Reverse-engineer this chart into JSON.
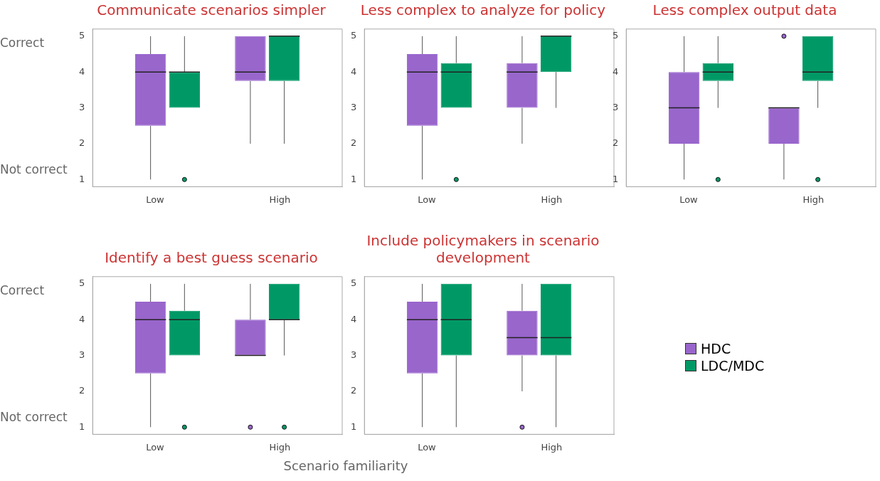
{
  "chart_data": [
    {
      "type": "box",
      "title": "Communicate scenarios simpler",
      "categories": [
        "Low",
        "High"
      ],
      "ylim": [
        0.8,
        5.2
      ],
      "yticks": [
        1,
        2,
        3,
        4,
        5
      ],
      "grid": false,
      "legend": false,
      "annotations": [
        "Correct",
        "Not correct"
      ],
      "series": [
        {
          "color": "#9966cc",
          "boxes": [
            {
              "low": 1,
              "q1": 2.5,
              "median": 4,
              "q3": 4.5,
              "high": 5
            },
            {
              "low": 2,
              "q1": 3.75,
              "median": 4,
              "q3": 5,
              "high": 5
            }
          ]
        },
        {
          "color": "#009966",
          "boxes": [
            {
              "low": 3,
              "q1": 3,
              "median": 4,
              "q3": 4,
              "high": 5,
              "outliers": [
                1
              ]
            },
            {
              "low": 2,
              "q1": 3.75,
              "median": 5,
              "q3": 5,
              "high": 5
            }
          ]
        }
      ]
    },
    {
      "type": "box",
      "title": "Less complex to analyze for policy",
      "categories": [
        "Low",
        "High"
      ],
      "ylim": [
        0.8,
        5.2
      ],
      "yticks": [
        1,
        2,
        3,
        4,
        5
      ],
      "grid": false,
      "legend": false,
      "series": [
        {
          "color": "#9966cc",
          "boxes": [
            {
              "low": 1,
              "q1": 2.5,
              "median": 4,
              "q3": 4.5,
              "high": 5
            },
            {
              "low": 2,
              "q1": 3,
              "median": 4,
              "q3": 4.25,
              "high": 5
            }
          ]
        },
        {
          "color": "#009966",
          "boxes": [
            {
              "low": 3,
              "q1": 3,
              "median": 4,
              "q3": 4.25,
              "high": 5,
              "outliers": [
                1
              ]
            },
            {
              "low": 3,
              "q1": 4,
              "median": 5,
              "q3": 5,
              "high": 5
            }
          ]
        }
      ]
    },
    {
      "type": "box",
      "title": "Less complex output data",
      "categories": [
        "Low",
        "High"
      ],
      "ylim": [
        0.8,
        5.2
      ],
      "yticks": [
        1,
        2,
        3,
        4,
        5
      ],
      "grid": false,
      "legend": false,
      "series": [
        {
          "color": "#9966cc",
          "boxes": [
            {
              "low": 1,
              "q1": 2,
              "median": 3,
              "q3": 4,
              "high": 5
            },
            {
              "low": 1,
              "q1": 2,
              "median": 3,
              "q3": 3,
              "high": 3,
              "outliers": [
                5
              ]
            }
          ]
        },
        {
          "color": "#009966",
          "boxes": [
            {
              "low": 3,
              "q1": 3.75,
              "median": 4,
              "q3": 4.25,
              "high": 5,
              "outliers": [
                1
              ]
            },
            {
              "low": 3,
              "q1": 3.75,
              "median": 4,
              "q3": 5,
              "high": 5,
              "outliers": [
                1
              ]
            }
          ]
        }
      ]
    },
    {
      "type": "box",
      "title": "Identify a best guess scenario",
      "categories": [
        "Low",
        "High"
      ],
      "ylim": [
        0.8,
        5.2
      ],
      "yticks": [
        1,
        2,
        3,
        4,
        5
      ],
      "grid": false,
      "legend": false,
      "xlabel": "Scenario familiarity",
      "annotations": [
        "Correct",
        "Not correct"
      ],
      "series": [
        {
          "color": "#9966cc",
          "boxes": [
            {
              "low": 1,
              "q1": 2.5,
              "median": 4,
              "q3": 4.5,
              "high": 5
            },
            {
              "low": 3,
              "q1": 3,
              "median": 3,
              "q3": 4,
              "high": 5,
              "outliers": [
                1
              ]
            }
          ]
        },
        {
          "color": "#009966",
          "boxes": [
            {
              "low": 3,
              "q1": 3,
              "median": 4,
              "q3": 4.25,
              "high": 5,
              "outliers": [
                1
              ]
            },
            {
              "low": 3,
              "q1": 4,
              "median": 4,
              "q3": 5,
              "high": 5,
              "outliers": [
                1
              ]
            }
          ]
        }
      ]
    },
    {
      "type": "box",
      "title": "Include policymakers in scenario development",
      "categories": [
        "Low",
        "High"
      ],
      "ylim": [
        0.8,
        5.2
      ],
      "yticks": [
        1,
        2,
        3,
        4,
        5
      ],
      "grid": false,
      "legend": "right",
      "series": [
        {
          "name": "HDC",
          "color": "#9966cc",
          "boxes": [
            {
              "low": 1,
              "q1": 2.5,
              "median": 4,
              "q3": 4.5,
              "high": 5
            },
            {
              "low": 2,
              "q1": 3,
              "median": 3.5,
              "q3": 4.25,
              "high": 5,
              "outliers": [
                1
              ]
            }
          ]
        },
        {
          "name": "LDC/MDC",
          "color": "#009966",
          "boxes": [
            {
              "low": 1,
              "q1": 3,
              "median": 4,
              "q3": 5,
              "high": 5
            },
            {
              "low": 1,
              "q1": 3,
              "median": 3.5,
              "q3": 5,
              "high": 5
            }
          ]
        }
      ]
    }
  ]
}
